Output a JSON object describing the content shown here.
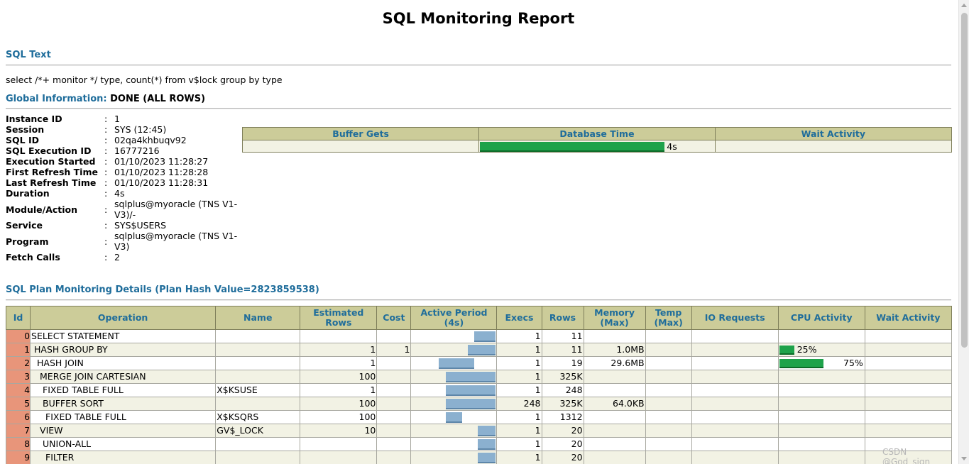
{
  "title": "SQL Monitoring Report",
  "sql_text_heading": "SQL Text",
  "sql_text": "select /*+ monitor */ type, count(*) from v$lock group by type",
  "global_info_heading": "Global Information:",
  "global_info_status": "DONE (ALL ROWS)",
  "global_info": [
    {
      "key": "Instance ID",
      "value": "1"
    },
    {
      "key": "Session",
      "value": "SYS (12:45)"
    },
    {
      "key": "SQL ID",
      "value": "02qa4khbuqv92"
    },
    {
      "key": "SQL Execution ID",
      "value": "16777216"
    },
    {
      "key": "Execution Started",
      "value": "01/10/2023 11:28:27"
    },
    {
      "key": "First Refresh Time",
      "value": "01/10/2023 11:28:28"
    },
    {
      "key": "Last Refresh Time",
      "value": "01/10/2023 11:28:31"
    },
    {
      "key": "Duration",
      "value": "4s"
    },
    {
      "key": "Module/Action",
      "value": "sqlplus@myoracle (TNS V1-V3)/-"
    },
    {
      "key": "Service",
      "value": "SYS$USERS"
    },
    {
      "key": "Program",
      "value": "sqlplus@myoracle (TNS V1-V3)"
    },
    {
      "key": "Fetch Calls",
      "value": "2"
    }
  ],
  "summary": {
    "headers": [
      "Buffer Gets",
      "Database Time",
      "Wait Activity"
    ],
    "database_time_value": "4s",
    "database_time_fill": 1.0
  },
  "plan_heading": "SQL Plan Monitoring Details (Plan Hash Value=2823859538)",
  "plan_columns": [
    "Id",
    "Operation",
    "Name",
    "Estimated Rows",
    "Cost",
    "Active Period (4s)",
    "Execs",
    "Rows",
    "Memory (Max)",
    "Temp (Max)",
    "IO Requests",
    "CPU Activity",
    "Wait Activity"
  ],
  "plan_rows": [
    {
      "id": "0",
      "operation": "SELECT STATEMENT",
      "indent": 0,
      "name": "",
      "est_rows": "",
      "cost": "",
      "ap_start": 0.75,
      "ap_end": 1.0,
      "execs": "1",
      "rows": "11",
      "memory": "",
      "temp": "",
      "io": "",
      "cpu": "",
      "cpu_fill": 0,
      "wait": ""
    },
    {
      "id": "1",
      "operation": "HASH GROUP BY",
      "indent": 1,
      "name": "",
      "est_rows": "1",
      "cost": "1",
      "ap_start": 0.67,
      "ap_end": 1.0,
      "execs": "1",
      "rows": "11",
      "memory": "1.0MB",
      "temp": "",
      "io": "",
      "cpu": "25%",
      "cpu_fill": 0.25,
      "wait": ""
    },
    {
      "id": "2",
      "operation": "HASH JOIN",
      "indent": 2,
      "name": "",
      "est_rows": "1",
      "cost": "",
      "ap_start": 0.33,
      "ap_end": 0.75,
      "execs": "1",
      "rows": "19",
      "memory": "29.6MB",
      "temp": "",
      "io": "",
      "cpu": "75%",
      "cpu_fill": 0.75,
      "wait": ""
    },
    {
      "id": "3",
      "operation": "MERGE JOIN CARTESIAN",
      "indent": 3,
      "name": "",
      "est_rows": "100",
      "cost": "",
      "ap_start": 0.41,
      "ap_end": 1.0,
      "execs": "1",
      "rows": "325K",
      "memory": "",
      "temp": "",
      "io": "",
      "cpu": "",
      "cpu_fill": 0,
      "wait": ""
    },
    {
      "id": "4",
      "operation": "FIXED TABLE FULL",
      "indent": 4,
      "name": "X$KSUSE",
      "est_rows": "1",
      "cost": "",
      "ap_start": 0.41,
      "ap_end": 1.0,
      "execs": "1",
      "rows": "248",
      "memory": "",
      "temp": "",
      "io": "",
      "cpu": "",
      "cpu_fill": 0,
      "wait": ""
    },
    {
      "id": "5",
      "operation": "BUFFER SORT",
      "indent": 4,
      "name": "",
      "est_rows": "100",
      "cost": "",
      "ap_start": 0.41,
      "ap_end": 1.0,
      "execs": "248",
      "rows": "325K",
      "memory": "64.0KB",
      "temp": "",
      "io": "",
      "cpu": "",
      "cpu_fill": 0,
      "wait": ""
    },
    {
      "id": "6",
      "operation": "FIXED TABLE FULL",
      "indent": 5,
      "name": "X$KSQRS",
      "est_rows": "100",
      "cost": "",
      "ap_start": 0.41,
      "ap_end": 0.6,
      "execs": "1",
      "rows": "1312",
      "memory": "",
      "temp": "",
      "io": "",
      "cpu": "",
      "cpu_fill": 0,
      "wait": ""
    },
    {
      "id": "7",
      "operation": "VIEW",
      "indent": 3,
      "name": "GV$_LOCK",
      "est_rows": "10",
      "cost": "",
      "ap_start": 0.79,
      "ap_end": 1.0,
      "execs": "1",
      "rows": "20",
      "memory": "",
      "temp": "",
      "io": "",
      "cpu": "",
      "cpu_fill": 0,
      "wait": ""
    },
    {
      "id": "8",
      "operation": "UNION-ALL",
      "indent": 4,
      "name": "",
      "est_rows": "",
      "cost": "",
      "ap_start": 0.79,
      "ap_end": 1.0,
      "execs": "1",
      "rows": "20",
      "memory": "",
      "temp": "",
      "io": "",
      "cpu": "",
      "cpu_fill": 0,
      "wait": ""
    },
    {
      "id": "9",
      "operation": "FILTER",
      "indent": 5,
      "name": "",
      "est_rows": "",
      "cost": "",
      "ap_start": 0.79,
      "ap_end": 1.0,
      "execs": "1",
      "rows": "20",
      "memory": "",
      "temp": "",
      "io": "",
      "cpu": "",
      "cpu_fill": 0,
      "wait": ""
    }
  ],
  "watermark": "CSDN @God_sign"
}
